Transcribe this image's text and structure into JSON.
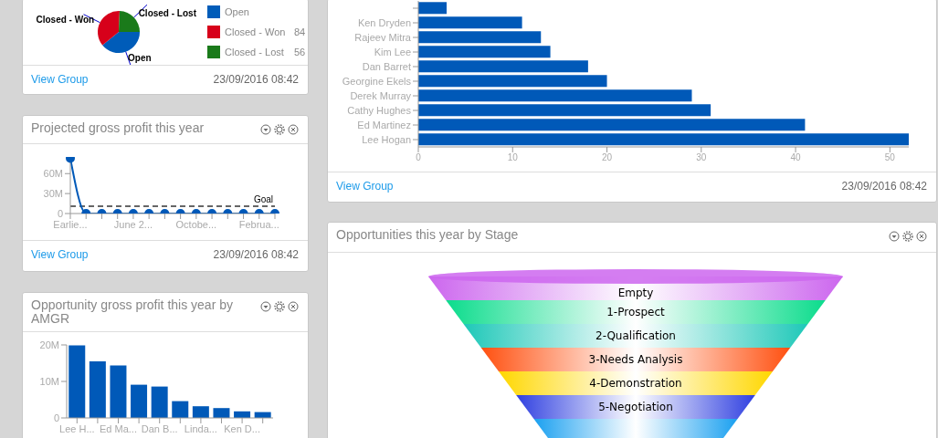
{
  "chart_data": [
    {
      "type": "pie",
      "categories": [
        "Open",
        "Closed - Won",
        "Closed - Lost"
      ],
      "values": [
        90,
        84,
        56
      ],
      "colors": [
        "#005cb9",
        "#d7001a",
        "#1a7a1a"
      ],
      "value_labels": [
        null,
        "84",
        "56"
      ],
      "legend": "right",
      "annotations": [
        "View Group",
        "23/09/2016 08:42"
      ]
    },
    {
      "type": "bar",
      "orientation": "horizontal",
      "categories": [
        null,
        "Ken Dryden",
        "Rajeev Mitra",
        "Kim Lee",
        "Dan Barret",
        "Georgine Ekels",
        "Derek Murray",
        "Cathy Hughes",
        "Ed Martinez",
        "Lee Hogan"
      ],
      "values": [
        3,
        11,
        13,
        14,
        18,
        20,
        29,
        31,
        41,
        52
      ],
      "color": "#0059b8",
      "xlim": [
        0,
        52
      ],
      "xticks": [
        0,
        10,
        20,
        30,
        40,
        50
      ],
      "annotations": [
        "View Group",
        "23/09/2016 08:42"
      ]
    },
    {
      "type": "line",
      "title": "Projected gross profit this year",
      "categories": [
        "Earlie...",
        null,
        null,
        null,
        "June 2...",
        null,
        null,
        null,
        "Octobe...",
        null,
        null,
        null,
        "Februa...",
        null
      ],
      "values": [
        83000000,
        0,
        0,
        0,
        0,
        0,
        0,
        0,
        0,
        0,
        0,
        0,
        0,
        0
      ],
      "color": "#0059b8",
      "marker": "circle",
      "ylim": [
        0,
        85000000
      ],
      "yticks": [
        0,
        {
          "value": 30000000,
          "label": "30M"
        },
        {
          "value": 60000000,
          "label": "60M"
        }
      ],
      "ref_lines": [
        {
          "axis": "y",
          "value": 11000000,
          "label": "Goal",
          "color": "#666666",
          "line_style": "dashed"
        }
      ],
      "annotations": [
        "View Group",
        "23/09/2016 08:42"
      ]
    },
    {
      "type": "other",
      "title": "Opportunities this year by Stage",
      "categories": [
        "Empty",
        "1-Prospect",
        "2-Qualification",
        "3-Needs Analysis",
        "4-Demonstration",
        "5-Negotiation",
        null
      ],
      "colors": [
        "#cc66ee",
        "#0bdc8c",
        "#1ec8b8",
        "#ff5010",
        "#ffd700",
        "#3040e0",
        "#1aa0f0"
      ]
    },
    {
      "type": "bar",
      "title": "Opportunity gross profit this year by AMGR",
      "categories": [
        "Lee H...",
        null,
        "Ed Ma...",
        null,
        "Dan B...",
        null,
        "Linda...",
        null,
        "Ken D...",
        null
      ],
      "values": [
        19900000,
        15500000,
        14400000,
        9100000,
        8600000,
        4600000,
        3200000,
        2700000,
        1800000,
        1600000
      ],
      "color": "#0059b8",
      "ylim": [
        0,
        20000000
      ],
      "yticks": [
        0,
        {
          "value": 10000000,
          "label": "10M"
        },
        {
          "value": 20000000,
          "label": "20M"
        }
      ]
    }
  ]
}
